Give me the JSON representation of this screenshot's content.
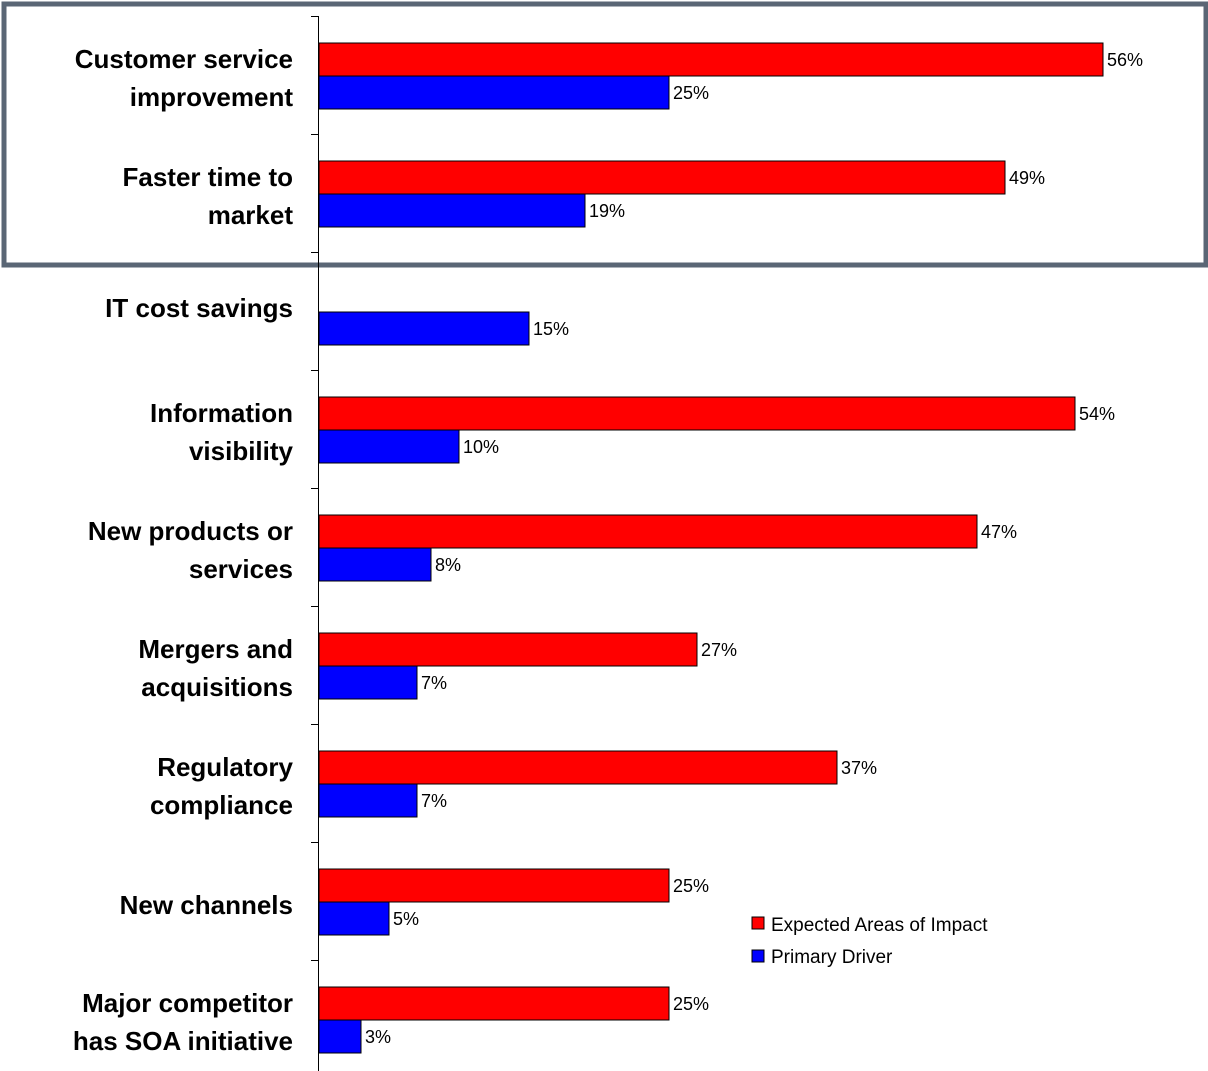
{
  "chart_data": {
    "type": "bar",
    "orientation": "horizontal",
    "categories": [
      [
        "Customer service",
        "improvement"
      ],
      [
        "Faster time to",
        "market"
      ],
      [
        "IT cost savings"
      ],
      [
        "Information",
        "visibility"
      ],
      [
        "New products or",
        "services"
      ],
      [
        "Mergers and",
        "acquisitions"
      ],
      [
        "Regulatory",
        "compliance"
      ],
      [
        "New channels"
      ],
      [
        "Major competitor",
        "has SOA initiative"
      ]
    ],
    "series": [
      {
        "name": "Expected Areas of Impact",
        "color": "#ff0000",
        "values": [
          56,
          49,
          null,
          54,
          47,
          27,
          37,
          25,
          25
        ],
        "labels": [
          "56%",
          "49%",
          "",
          "54%",
          "47%",
          "27%",
          "37%",
          "25%",
          "25%"
        ]
      },
      {
        "name": "Primary Driver",
        "color": "#0000ff",
        "values": [
          25,
          19,
          15,
          10,
          8,
          7,
          7,
          5,
          3
        ],
        "labels": [
          "25%",
          "19%",
          "15%",
          "10%",
          "8%",
          "7%",
          "7%",
          "5%",
          "3%"
        ]
      }
    ],
    "xlim": [
      0,
      60
    ],
    "grid": false,
    "legend_position": "bottom-right",
    "highlight_box_categories": [
      "Customer service improvement",
      "Faster time to market"
    ],
    "highlight_box_color": "#5a6675"
  }
}
